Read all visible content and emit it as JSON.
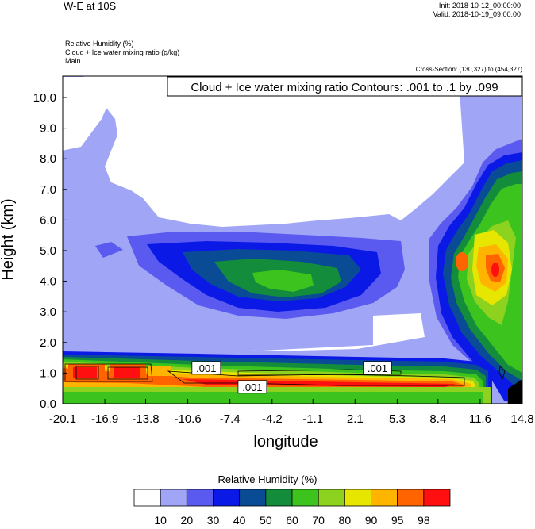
{
  "header": {
    "title": "W-E at 10S",
    "init": "Init: 2018-10-12_00:00:00",
    "valid": "Valid: 2018-10-19_09:00:00",
    "field1": "Relative Humidity   (%)",
    "field2": "Cloud + Ice water mixing ratio   (g/kg)",
    "field3": "Main",
    "cross_section": "Cross-Section: (130,327) to (454,327)"
  },
  "colors": {
    "rh": [
      "#ffffff",
      "#a0a5f5",
      "#5a5af0",
      "#0a19e6",
      "#0a4b96",
      "#138c3c",
      "#3cc31e",
      "#8cd21e",
      "#e6e600",
      "#ffb400",
      "#ff6400",
      "#ff0f0f"
    ]
  },
  "chart_data": {
    "type": "heatmap",
    "title": "Cloud + Ice water mixing ratio Contours: .001 to .1 by .099",
    "xlabel": "longitude",
    "ylabel": "Height (km)",
    "x_ticks": [
      "-20.1",
      "-16.9",
      "-13.8",
      "-10.6",
      "-7.4",
      "-4.2",
      "-1.1",
      "2.1",
      "5.3",
      "8.4",
      "11.6",
      "14.8"
    ],
    "y_ticks": [
      "0.0",
      "1.0",
      "2.0",
      "3.0",
      "4.0",
      "5.0",
      "6.0",
      "7.0",
      "8.0",
      "9.0",
      "10.0"
    ],
    "xlim": [
      -20.1,
      14.8
    ],
    "ylim": [
      0,
      10.7
    ],
    "contour_labels": [
      {
        "text": ".001",
        "x": -9.2,
        "y": 1.17
      },
      {
        "text": ".001",
        "x": -5.7,
        "y": 0.55
      },
      {
        "text": ".001",
        "x": 3.8,
        "y": 1.17
      }
    ],
    "colorbar": {
      "title": "Relative Humidity  (%)",
      "labels": [
        "10",
        "20",
        "30",
        "40",
        "50",
        "60",
        "70",
        "80",
        "90",
        "95",
        "98"
      ]
    }
  }
}
